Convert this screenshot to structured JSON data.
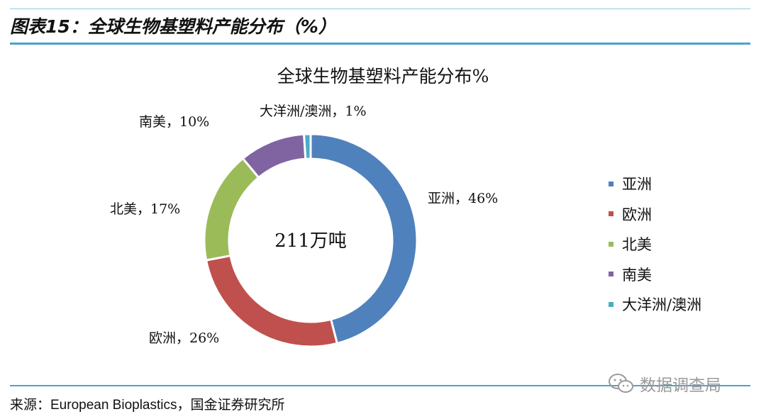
{
  "figure": {
    "caption": "图表15：全球生物基塑料产能分布（%）",
    "source": "来源：European Bioplastics，国金证券研究所",
    "watermark": "数据调查局"
  },
  "chart_data": {
    "type": "pie",
    "title": "全球生物基塑料产能分布%",
    "center_text": "211万吨",
    "categories": [
      "亚洲",
      "欧洲",
      "北美",
      "南美",
      "大洋洲/澳洲"
    ],
    "values": [
      46,
      26,
      17,
      10,
      1
    ],
    "unit": "%",
    "data_labels": [
      "亚洲，46%",
      "欧洲，26%",
      "北美，17%",
      "南美，10%",
      "大洋洲/澳洲，1%"
    ],
    "colors": [
      "#4f81bd",
      "#c0504d",
      "#9bbb59",
      "#8064a2",
      "#4bacc6"
    ],
    "legend": "right"
  }
}
